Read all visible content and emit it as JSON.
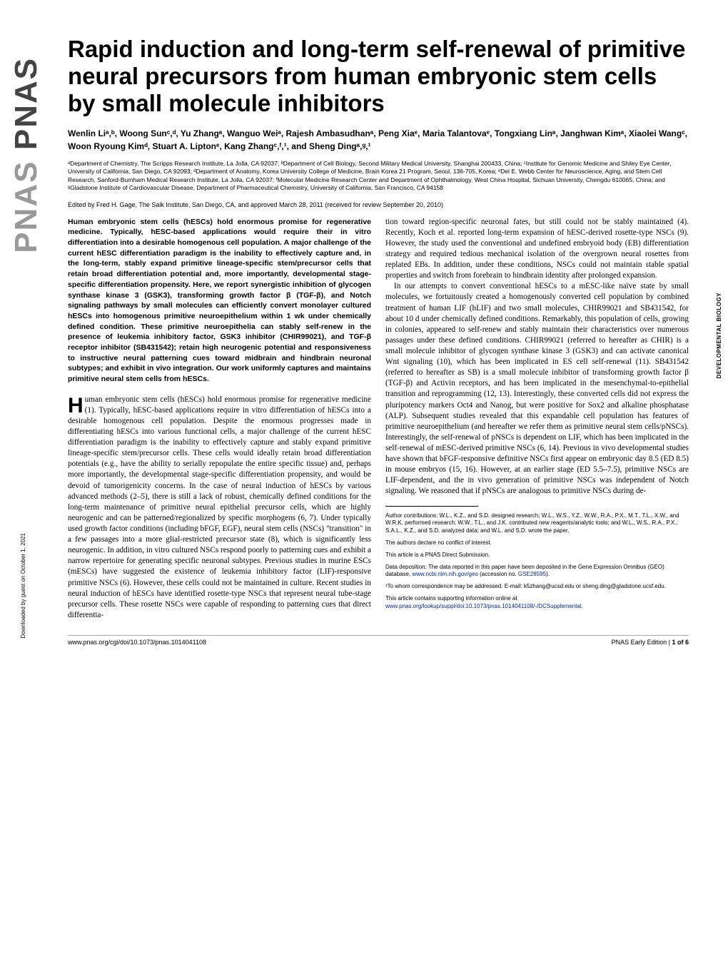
{
  "logo": {
    "text_outline": "PNAS",
    "text_solid": "PNAS"
  },
  "side_label": "DEVELOPMENTAL BIOLOGY",
  "downloaded": "Downloaded by guest on October 1, 2021",
  "title": "Rapid induction and long-term self-renewal of primitive neural precursors from human embryonic stem cells by small molecule inhibitors",
  "authors": "Wenlin Liᵃ,ᵇ, Woong Sunᶜ,ᵈ, Yu Zhangᵃ, Wanguo Weiᵃ, Rajesh Ambasudhanᵃ, Peng Xiaᵉ, Maria Talantovaᵉ, Tongxiang Linᵃ, Janghwan Kimᵃ, Xiaolei Wangᶜ, Woon Ryoung Kimᵈ, Stuart A. Liptonᵉ, Kang Zhangᶜ,ᶠ,¹, and Sheng Dingᵃ,ᵍ,¹",
  "affiliations": "ᵃDepartment of Chemistry, The Scripps Research Institute, La Jolla, CA 92037; ᵇDepartment of Cell Biology, Second Military Medical University, Shanghai 200433, China; ᶜInstitute for Genomic Medicine and Shiley Eye Center, University of California, San Diego, CA 92093; ᵈDepartment of Anatomy, Korea University College of Medicine, Brain Korea 21 Program, Seoul, 136-705, Korea; ᵉDel E. Webb Center for Neuroscience, Aging, and Stem Cell Research, Sanford-Burnham Medical Research Institute, La Jolla, CA 92037; ᶠMolecular Medicine Research Center and Department of Ophthalmology, West China Hospital, Sichuan University, Chengdu 610065, China; and ᵍGladstone Institute of Cardiovascular Disease, Department of Pharmaceutical Chemistry, University of California, San Francisco, CA 94158",
  "edited": "Edited by Fred H. Gage, The Salk Institute, San Diego, CA, and approved March 28, 2011 (received for review September 20, 2010)",
  "abstract": "Human embryonic stem cells (hESCs) hold enormous promise for regenerative medicine. Typically, hESC-based applications would require their in vitro differentiation into a desirable homogenous cell population. A major challenge of the current hESC differentiation paradigm is the inability to effectively capture and, in the long-term, stably expand primitive lineage-specific stem/precursor cells that retain broad differentiation potential and, more importantly, developmental stage-specific differentiation propensity. Here, we report synergistic inhibition of glycogen synthase kinase 3 (GSK3), transforming growth factor β (TGF-β), and Notch signaling pathways by small molecules can efficiently convert monolayer cultured hESCs into homogenous primitive neuroepithelium within 1 wk under chemically defined condition. These primitive neuroepithelia can stably self-renew in the presence of leukemia inhibitory factor, GSK3 inhibitor (CHIR99021), and TGF-β receptor inhibitor (SB431542); retain high neurogenic potential and responsiveness to instructive neural patterning cues toward midbrain and hindbrain neuronal subtypes; and exhibit in vivo integration. Our work uniformly captures and maintains primitive neural stem cells from hESCs.",
  "body_col1_dropcap": "H",
  "body_col1_p1": "uman embryonic stem cells (hESCs) hold enormous promise for regenerative medicine (1). Typically, hESC-based applications require in vitro differentiation of hESCs into a desirable homogenous cell population. Despite the enormous progresses made in differentiating hESCs into various functional cells, a major challenge of the current hESC differentiation paradigm is the inability to effectively capture and stably expand primitive lineage-specific stem/precursor cells. These cells would ideally retain broad differentiation potentials (e.g., have the ability to serially repopulate the entire specific tissue) and, perhaps more importantly, the developmental stage-specific differentiation propensity, and would be devoid of tumorigenicity concerns. In the case of neural induction of hESCs by various advanced methods (2–5), there is still a lack of robust, chemically defined conditions for the long-term maintenance of primitive neural epithelial precursor cells, which are highly neurogenic and can be patterned/regionalized by specific morphogens (6, 7). Under typically used growth factor conditions (including bFGF, EGF), neural stem cells (NSCs) \"transition\" in a few passages into a more glial-restricted precursor state (8), which is significantly less neurogenic. In addition, in vitro cultured NSCs respond poorly to patterning cues and exhibit a narrow repertoire for generating specific neuronal subtypes. Previous studies in murine ESCs (mESCs) have suggested the existence of leukemia inhibitory factor (LIF)-responsive primitive NSCs (6). However, these cells could not be maintained in culture. Recent studies in neural induction of hESCs have identified rosette-type NSCs that represent neural tube-stage precursor cells. These rosette NSCs were capable of responding to patterning cues that direct differentia-",
  "body_col2_p1": "tion toward region-specific neuronal fates, but still could not be stably maintained (4). Recently, Koch et al. reported long-term expansion of hESC-derived rosette-type NSCs (9). However, the study used the conventional and undefined embryoid body (EB) differentiation strategy and required tedious mechanical isolation of the overgrown neural rosettes from replated EBs. In addition, under these conditions, NSCs could not maintain stable spatial properties and switch from forebrain to hindbrain identity after prolonged expansion.",
  "body_col2_p2": "In our attempts to convert conventional hESCs to a mESC-like naïve state by small molecules, we fortuitously created a homogenously converted cell population by combined treatment of human LIF (hLIF) and two small molecules, CHIR99021 and SB431542, for about 10 d under chemically defined conditions. Remarkably, this population of cells, growing in colonies, appeared to self-renew and stably maintain their characteristics over numerous passages under these defined conditions. CHIR99021 (referred to hereafter as CHIR) is a small molecule inhibitor of glycogen synthase kinase 3 (GSK3) and can activate canonical Wnt signaling (10), which has been implicated in ES cell self-renewal (11). SB431542 (referred to hereafter as SB) is a small molecule inhibitor of transforming growth factor β (TGF-β) and Activin receptors, and has been implicated in the mesenchymal-to-epithelial transition and reprogramming (12, 13). Interestingly, these converted cells did not express the pluripotency markers Oct4 and Nanog, but were positive for Sox2 and alkaline phosphatase (ALP). Subsequent studies revealed that this expandable cell population has features of primitive neuroepithelium (and hereafter we refer them as primitive neural stem cells/pNSCs). Interestingly, the self-renewal of pNSCs is dependent on LIF, which has been implicated in the self-renewal of mESC-derived primitive NSCs (6, 14). Previous in vivo developmental studies have shown that bFGF-responsive definitive NSCs first appear on embryonic day 8.5 (ED 8.5) in mouse embryos (15, 16). However, at an earlier stage (ED 5.5–7.5), primitive NSCs are LIF-dependent, and the in vivo generation of primitive NSCs was independent of Notch signaling. We reasoned that if pNSCs are analogous to primitive NSCs during de-",
  "footnotes": {
    "contrib": "Author contributions: W.L., K.Z., and S.D. designed research; W.L., W.S., Y.Z., W.W., R.A., P.X., M.T., T.L., X.W., and W.R.K. performed research; W.W., T.L., and J.K. contributed new reagents/analytic tools; and W.L., W.S., R.A., P.X., S.A.L., K.Z., and S.D. analyzed data; and W.L. and S.D. wrote the paper.",
    "conflict": "The authors declare no conflict of interest.",
    "direct": "This article is a PNAS Direct Submission.",
    "data_dep": "Data deposition: The data reported in this paper have been deposited in the Gene Expression Omnibus (GEO) database, ",
    "data_link1": "www.ncbi.nlm.nih.gov/geo",
    "data_dep2": " (accession no. ",
    "data_link2": "GSE28595",
    "data_dep3": ").",
    "corresp": "¹To whom correspondence may be addressed. E-mail: k5zhang@ucsd.edu or sheng.ding@gladstone.ucsf.edu.",
    "suppl1": "This article contains supporting information online at ",
    "suppl_link": "www.pnas.org/lookup/suppl/doi:10.1073/pnas.1014041108/-/DCSupplemental",
    "suppl2": "."
  },
  "footer": {
    "doi": "www.pnas.org/cgi/doi/10.1073/pnas.1014041108",
    "page_left": "PNAS Early Edition",
    "page_sep": " | ",
    "page_right": "1 of 6"
  }
}
